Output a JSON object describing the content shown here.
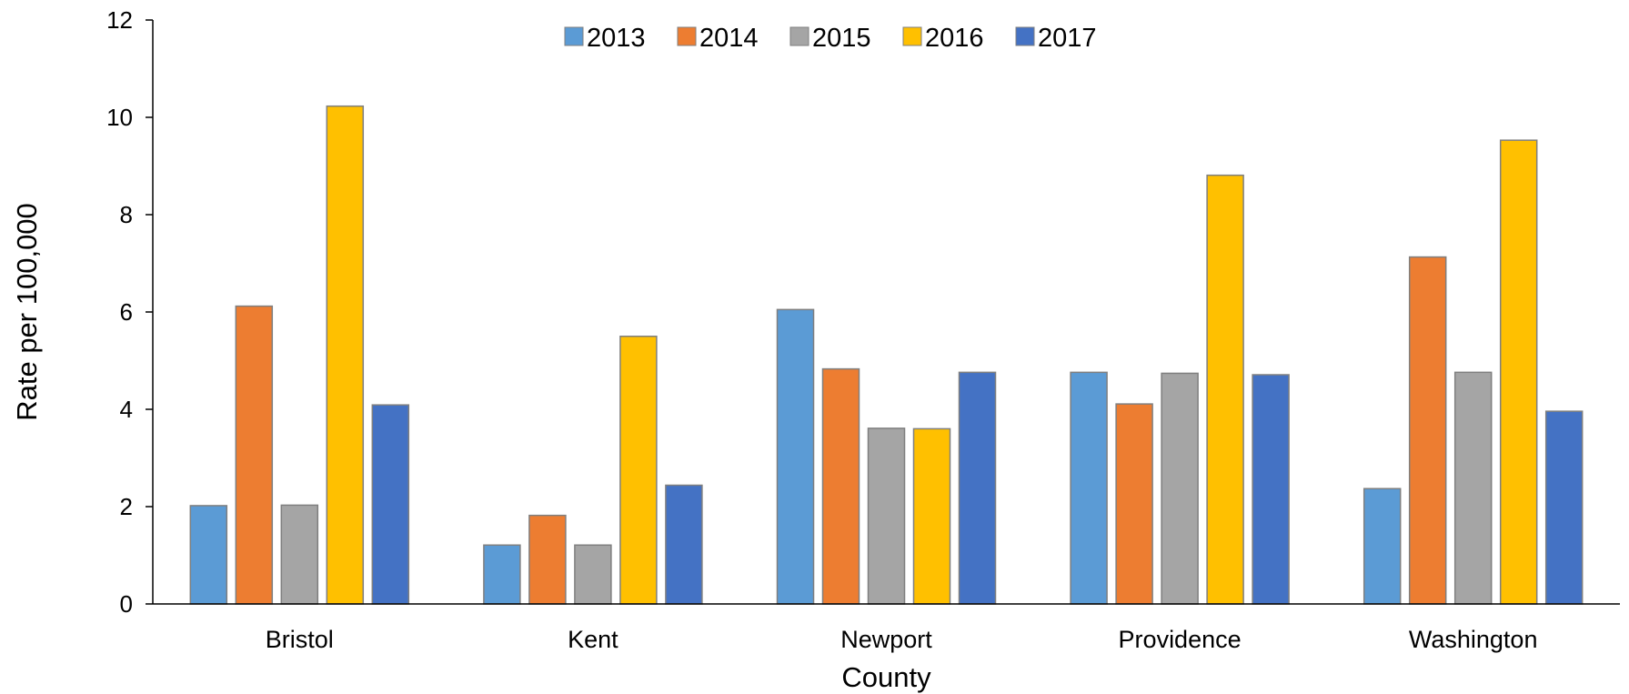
{
  "chart_data": {
    "type": "bar",
    "title": "",
    "xlabel": "County",
    "ylabel": "Rate per 100,000",
    "ylim": [
      0,
      12
    ],
    "yticks": [
      0,
      2,
      4,
      6,
      8,
      10,
      12
    ],
    "grid": false,
    "legend_position": "top-center",
    "categories": [
      "Bristol",
      "Kent",
      "Newport",
      "Providence",
      "Washington"
    ],
    "series": [
      {
        "name": "2013",
        "color": "#5b9bd5",
        "values": [
          2.02,
          1.21,
          6.05,
          4.76,
          2.37
        ]
      },
      {
        "name": "2014",
        "color": "#ed7d31",
        "values": [
          6.12,
          1.82,
          4.83,
          4.11,
          7.13
        ]
      },
      {
        "name": "2015",
        "color": "#a5a5a5",
        "values": [
          2.03,
          1.21,
          3.61,
          4.74,
          4.76
        ]
      },
      {
        "name": "2016",
        "color": "#ffc000",
        "values": [
          10.23,
          5.5,
          3.6,
          8.81,
          9.53
        ]
      },
      {
        "name": "2017",
        "color": "#4472c4",
        "values": [
          4.09,
          2.44,
          4.76,
          4.71,
          3.96
        ]
      }
    ]
  }
}
